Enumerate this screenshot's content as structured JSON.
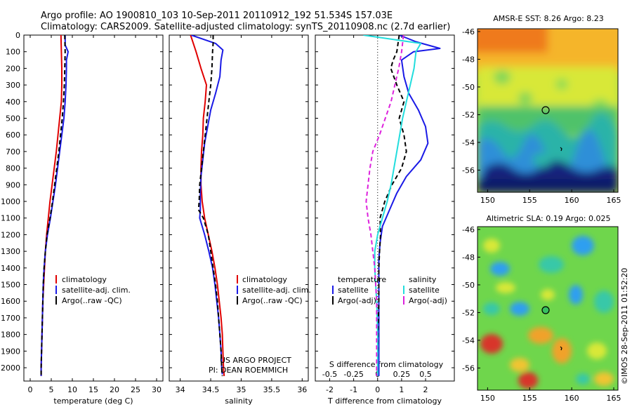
{
  "header": {
    "line1": "Argo profile: AO 1900810_103 10-Sep-2011 20110912_192 51.534S 157.03E",
    "line2": "Climatology: CARS2009. Satellite-adjusted climatology: synTS_20110908.nc (2.7d earlier)"
  },
  "footer": {
    "credit1": "US ARGO PROJECT",
    "credit2": "PI: DEAN ROEMMICH",
    "stamp": "©IMOS 28-Sep-2011 01:52:20"
  },
  "colors": {
    "climatology": "#e00000",
    "satellite": "#1a1ae6",
    "argo": "#000000",
    "sat_sal": "#22dddd",
    "argo_sal": "#dd22dd"
  },
  "chart_data": [
    {
      "type": "line",
      "id": "temperature",
      "xlabel": "temperature (deg C)",
      "xticks": [
        0,
        5,
        10,
        15,
        20,
        25,
        30
      ],
      "xlim": [
        -1.5,
        31.5
      ],
      "ylim": [
        0,
        2080
      ],
      "yticks": [
        0,
        100,
        200,
        300,
        400,
        500,
        600,
        700,
        800,
        900,
        1000,
        1100,
        1200,
        1300,
        1400,
        1500,
        1600,
        1700,
        1800,
        1900,
        2000
      ],
      "series": [
        {
          "name": "climatology",
          "color": "#e00000",
          "dash": "",
          "depth": [
            0,
            100,
            200,
            300,
            400,
            500,
            600,
            700,
            800,
            900,
            1000,
            1100,
            1200,
            1300,
            1400,
            1500,
            1600,
            1700,
            1800,
            1900,
            2000,
            2050
          ],
          "values": [
            7.3,
            7.4,
            7.5,
            7.5,
            7.4,
            7.0,
            6.6,
            6.2,
            5.7,
            5.2,
            4.7,
            4.3,
            3.9,
            3.6,
            3.4,
            3.2,
            3.0,
            2.9,
            2.8,
            2.7,
            2.6,
            2.6
          ]
        },
        {
          "name": "satellite-adj. clim.",
          "color": "#1a1ae6",
          "dash": "",
          "depth": [
            0,
            60,
            100,
            150,
            200,
            300,
            400,
            500,
            600,
            700,
            800,
            900,
            1000,
            1100,
            1200,
            1300,
            1400,
            1500,
            1600,
            1700,
            1800,
            1900,
            2000,
            2050
          ],
          "values": [
            8.3,
            8.3,
            9.0,
            8.6,
            8.6,
            8.5,
            8.3,
            8.0,
            7.5,
            7.0,
            6.5,
            6.0,
            5.4,
            4.8,
            4.1,
            3.6,
            3.3,
            3.1,
            3.0,
            2.9,
            2.8,
            2.7,
            2.6,
            2.6
          ]
        },
        {
          "name": "Argo(..raw -QC)",
          "color": "#000000",
          "dash": "6,4",
          "depth": [
            0,
            100,
            200,
            300,
            400,
            500,
            600,
            700,
            800,
            900,
            1000,
            1100,
            1200,
            1300,
            1400,
            1500,
            1600,
            1700,
            1800,
            1900,
            2000,
            2050
          ],
          "values": [
            8.2,
            8.3,
            8.2,
            8.1,
            7.9,
            7.6,
            7.2,
            6.8,
            6.3,
            5.8,
            5.3,
            4.7,
            4.0,
            3.6,
            3.3,
            3.1,
            3.0,
            2.9,
            2.8,
            2.7,
            2.6,
            2.6
          ]
        }
      ],
      "legend": [
        "climatology",
        "satellite-adj. clim.",
        "Argo(..raw -QC)"
      ]
    },
    {
      "type": "line",
      "id": "salinity",
      "xlabel": "salinity",
      "xticks": [
        34,
        34.5,
        35,
        35.5,
        36
      ],
      "xlim": [
        33.82,
        36.1
      ],
      "ylim": [
        0,
        2080
      ],
      "series": [
        {
          "name": "climatology",
          "color": "#e00000",
          "dash": "",
          "depth": [
            0,
            100,
            200,
            300,
            400,
            500,
            600,
            700,
            800,
            900,
            1000,
            1100,
            1200,
            1300,
            1400,
            1500,
            1600,
            1700,
            1800,
            1900,
            2000,
            2050
          ],
          "values": [
            34.17,
            34.26,
            34.34,
            34.43,
            34.41,
            34.38,
            34.37,
            34.35,
            34.34,
            34.34,
            34.36,
            34.4,
            34.46,
            34.52,
            34.57,
            34.61,
            34.64,
            34.67,
            34.69,
            34.7,
            34.71,
            34.72
          ]
        },
        {
          "name": "satellite-adj. clim.",
          "color": "#1a1ae6",
          "dash": "",
          "depth": [
            0,
            50,
            90,
            150,
            250,
            350,
            450,
            550,
            650,
            750,
            850,
            950,
            1050,
            1100,
            1200,
            1300,
            1400,
            1500,
            1600,
            1700,
            1800,
            1900,
            2000,
            2040
          ],
          "values": [
            34.18,
            34.58,
            34.7,
            34.67,
            34.65,
            34.58,
            34.5,
            34.45,
            34.4,
            34.37,
            34.34,
            34.33,
            34.33,
            34.32,
            34.4,
            34.47,
            34.53,
            34.57,
            34.6,
            34.63,
            34.65,
            34.67,
            34.68,
            34.69
          ]
        },
        {
          "name": "Argo(..raw -QC)",
          "color": "#000000",
          "dash": "6,4",
          "depth": [
            0,
            50,
            100,
            200,
            300,
            400,
            500,
            600,
            700,
            800,
            900,
            1000,
            1050,
            1100,
            1200,
            1300,
            1400,
            1500,
            1600,
            1700,
            1800,
            1900,
            2000,
            2050
          ],
          "values": [
            34.54,
            34.54,
            34.53,
            34.52,
            34.5,
            34.47,
            34.44,
            34.41,
            34.38,
            34.35,
            34.32,
            34.31,
            34.3,
            34.38,
            34.46,
            34.5,
            34.54,
            34.58,
            34.61,
            34.63,
            34.65,
            34.67,
            34.68,
            34.69
          ]
        }
      ],
      "legend": [
        "climatology",
        "satellite-adj. clim.",
        "Argo(..raw -QC)"
      ]
    },
    {
      "type": "line",
      "id": "difference",
      "xlabel": "T difference from climatology",
      "xlabel_top": "S difference from climatology",
      "xticks": [
        -2,
        -1,
        0,
        1,
        2
      ],
      "xticks_top": [
        -0.5,
        -0.25,
        0,
        0.25,
        0.5
      ],
      "xticks_top_labels": [
        "-0.5",
        "-0.25",
        "0",
        "0.25",
        "0.5"
      ],
      "xlim": [
        -2.6,
        3.2
      ],
      "ylim": [
        0,
        2080
      ],
      "series": [
        {
          "name": "satellite",
          "group": "temperature",
          "color": "#1a1ae6",
          "dash": "",
          "depth": [
            0,
            40,
            80,
            100,
            150,
            250,
            350,
            450,
            550,
            650,
            750,
            850,
            950,
            1050,
            1150,
            1250,
            1350,
            1450,
            1600,
            1800,
            2000,
            2050
          ],
          "values": [
            0.9,
            1.6,
            2.6,
            1.5,
            1.0,
            1.1,
            1.3,
            1.7,
            2.0,
            2.1,
            1.8,
            1.2,
            0.8,
            0.5,
            0.2,
            0.1,
            0.05,
            0.05,
            0.05,
            0.05,
            0.05,
            0.05
          ]
        },
        {
          "name": "Argo(-adj)",
          "group": "temperature",
          "color": "#000000",
          "dash": "6,4",
          "depth": [
            0,
            50,
            100,
            150,
            200,
            300,
            400,
            500,
            600,
            700,
            800,
            900,
            1000,
            1100,
            1200,
            1300,
            1400,
            1600,
            1800,
            2000,
            2050
          ],
          "values": [
            0.9,
            0.85,
            0.8,
            0.65,
            0.55,
            0.8,
            1.1,
            0.9,
            1.1,
            1.2,
            1.0,
            0.6,
            0.3,
            0.1,
            0.12,
            0.08,
            0.05,
            0.05,
            0.02,
            0.0,
            0.0
          ]
        },
        {
          "name": "satellite",
          "group": "salinity",
          "color": "#22dddd",
          "dash": "",
          "depth": [
            0,
            50,
            100,
            200,
            300,
            400,
            500,
            600,
            700,
            800,
            900,
            1000,
            1100,
            1200,
            1300,
            1400,
            1500,
            1600,
            1800,
            2000,
            2050
          ],
          "values": [
            -0.15,
            0.45,
            0.4,
            0.38,
            0.34,
            0.3,
            0.26,
            0.23,
            0.2,
            0.17,
            0.14,
            0.1,
            0.05,
            0.0,
            -0.03,
            -0.03,
            -0.02,
            -0.01,
            0.0,
            0.0,
            0.0
          ]
        },
        {
          "name": "Argo(-adj)",
          "group": "salinity",
          "color": "#dd22dd",
          "dash": "6,4",
          "depth": [
            0,
            100,
            200,
            300,
            400,
            500,
            600,
            700,
            800,
            900,
            1000,
            1100,
            1200,
            1300,
            1400,
            1500,
            1600,
            1800,
            2000,
            2050
          ],
          "values": [
            0.27,
            0.25,
            0.22,
            0.18,
            0.14,
            0.08,
            0.02,
            -0.05,
            -0.08,
            -0.1,
            -0.12,
            -0.1,
            -0.07,
            -0.05,
            -0.03,
            -0.02,
            -0.01,
            -0.01,
            -0.01,
            -0.01
          ]
        }
      ],
      "legend_titles": [
        "temperature",
        "salinity"
      ]
    },
    {
      "type": "heatmap",
      "id": "sst_map",
      "title": "AMSR-E SST: 8.26 Argo: 8.23",
      "xticks": [
        150,
        155,
        160,
        165
      ],
      "yticks": [
        -46,
        -48,
        -50,
        -52,
        -54,
        -56
      ],
      "xlim": [
        148.8,
        165.5
      ],
      "ylim": [
        -57.6,
        -45.8
      ],
      "float_position": {
        "lon": 157.03,
        "lat": -51.534
      }
    },
    {
      "type": "heatmap",
      "id": "sla_map",
      "title": "Altimetric SLA: 0.19 Argo: 0.025",
      "xticks": [
        150,
        155,
        160,
        165
      ],
      "yticks": [
        -46,
        -48,
        -50,
        -52,
        -54,
        -56
      ],
      "xlim": [
        148.8,
        165.5
      ],
      "ylim": [
        -57.6,
        -45.8
      ],
      "float_position": {
        "lon": 157.03,
        "lat": -51.534
      }
    }
  ]
}
